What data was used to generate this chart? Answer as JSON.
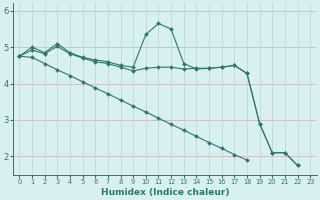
{
  "xlabel": "Humidex (Indice chaleur)",
  "x_values": [
    0,
    1,
    2,
    3,
    4,
    5,
    6,
    7,
    8,
    9,
    10,
    11,
    12,
    13,
    14,
    15,
    16,
    17,
    18,
    19,
    20,
    21,
    22,
    23
  ],
  "line1": [
    4.75,
    5.0,
    4.85,
    5.1,
    4.85,
    4.72,
    4.65,
    4.6,
    4.5,
    4.45,
    5.35,
    5.65,
    5.5,
    4.55,
    4.4,
    4.42,
    4.45,
    4.5,
    4.28,
    2.9,
    2.1,
    2.1,
    1.75,
    null
  ],
  "line2": [
    4.75,
    4.92,
    4.82,
    5.02,
    4.82,
    4.7,
    4.6,
    4.55,
    4.45,
    4.35,
    4.42,
    4.45,
    4.45,
    4.4,
    4.42,
    4.42,
    4.45,
    4.5,
    4.28,
    2.9,
    2.1,
    2.1,
    1.75,
    null
  ],
  "line3": [
    4.75,
    4.72,
    4.55,
    4.38,
    4.22,
    4.05,
    3.88,
    3.72,
    3.55,
    3.38,
    3.22,
    3.05,
    2.88,
    2.72,
    2.55,
    2.38,
    2.22,
    2.05,
    1.9,
    null,
    null,
    null,
    null,
    null
  ],
  "bg_color": "#d8f0ee",
  "grid_color_h": "#d0b8c0",
  "grid_color_v": "#c0d8d8",
  "line_color": "#2a7a6a",
  "marker": "D",
  "marker_size": 2.0,
  "ylim": [
    1.5,
    6.2
  ],
  "yticks": [
    2,
    3,
    4,
    5,
    6
  ],
  "xtick_labels": [
    "0",
    "1",
    "2",
    "3",
    "4",
    "5",
    "6",
    "7",
    "8",
    "9",
    "10",
    "11",
    "12",
    "13",
    "14",
    "15",
    "16",
    "17",
    "18",
    "19",
    "20",
    "21",
    "22",
    "23"
  ]
}
